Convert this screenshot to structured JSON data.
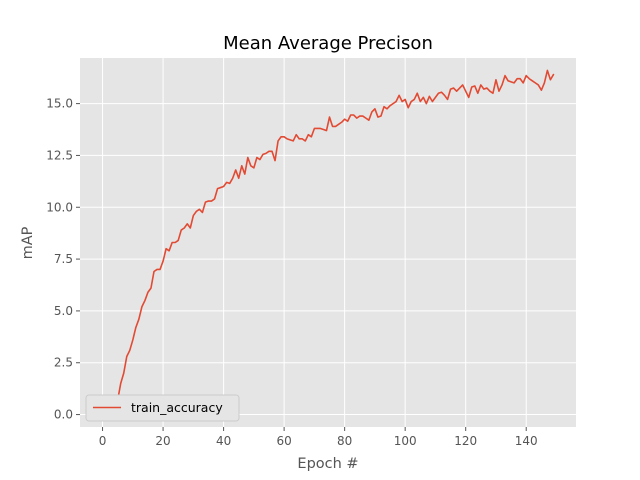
{
  "chart_data": {
    "type": "line",
    "title": "Mean Average Precison",
    "xlabel": "Epoch #",
    "ylabel": "mAP",
    "xlim": [
      -7.45,
      156.45
    ],
    "ylim": [
      -0.6,
      17.2
    ],
    "xticks": [
      0,
      20,
      40,
      60,
      80,
      100,
      120,
      140
    ],
    "yticks": [
      0.0,
      2.5,
      5.0,
      7.5,
      10.0,
      12.5,
      15.0
    ],
    "ytick_labels": [
      "0.0",
      "2.5",
      "5.0",
      "7.5",
      "10.0",
      "12.5",
      "15.0"
    ],
    "grid": true,
    "legend_position": "lower-left",
    "colors": {
      "background": "#e5e5e5",
      "grid": "#ffffff",
      "line": "#e24a33",
      "legend_bg": "#e5e5e5",
      "legend_edge": "#cccccc"
    },
    "series": [
      {
        "name": "train_accuracy",
        "x": [
          0,
          1,
          2,
          3,
          4,
          5,
          6,
          7,
          8,
          9,
          10,
          11,
          12,
          13,
          14,
          15,
          16,
          17,
          18,
          19,
          20,
          21,
          22,
          23,
          24,
          25,
          26,
          27,
          28,
          29,
          30,
          31,
          32,
          33,
          34,
          35,
          36,
          37,
          38,
          39,
          40,
          41,
          42,
          43,
          44,
          45,
          46,
          47,
          48,
          49,
          50,
          51,
          52,
          53,
          54,
          55,
          56,
          57,
          58,
          59,
          60,
          61,
          62,
          63,
          64,
          65,
          66,
          67,
          68,
          69,
          70,
          71,
          72,
          73,
          74,
          75,
          76,
          77,
          78,
          79,
          80,
          81,
          82,
          83,
          84,
          85,
          86,
          87,
          88,
          89,
          90,
          91,
          92,
          93,
          94,
          95,
          96,
          97,
          98,
          99,
          100,
          101,
          102,
          103,
          104,
          105,
          106,
          107,
          108,
          109,
          110,
          111,
          112,
          113,
          114,
          115,
          116,
          117,
          118,
          119,
          120,
          121,
          122,
          123,
          124,
          125,
          126,
          127,
          128,
          129,
          130,
          131,
          132,
          133,
          134,
          135,
          136,
          137,
          138,
          139,
          140,
          141,
          142,
          143,
          144,
          145,
          146,
          147,
          148,
          149
        ],
        "values": [
          0.15,
          0.1,
          0.12,
          0.2,
          0.25,
          0.7,
          1.5,
          2.0,
          2.8,
          3.1,
          3.6,
          4.2,
          4.6,
          5.2,
          5.5,
          5.9,
          6.1,
          6.9,
          7.0,
          7.0,
          7.4,
          8.0,
          7.9,
          8.3,
          8.3,
          8.4,
          8.9,
          9.0,
          9.2,
          9.0,
          9.6,
          9.8,
          9.9,
          9.75,
          10.25,
          10.3,
          10.3,
          10.4,
          10.9,
          10.95,
          11.0,
          11.2,
          11.15,
          11.4,
          11.8,
          11.4,
          12.0,
          11.6,
          12.4,
          12.0,
          11.9,
          12.4,
          12.3,
          12.55,
          12.6,
          12.7,
          12.7,
          12.25,
          13.2,
          13.4,
          13.4,
          13.3,
          13.25,
          13.2,
          13.5,
          13.3,
          13.3,
          13.2,
          13.5,
          13.4,
          13.8,
          13.8,
          13.8,
          13.75,
          13.7,
          14.35,
          13.9,
          13.9,
          14.0,
          14.1,
          14.25,
          14.15,
          14.45,
          14.45,
          14.3,
          14.4,
          14.4,
          14.3,
          14.2,
          14.6,
          14.75,
          14.35,
          14.4,
          14.85,
          14.75,
          14.9,
          15.0,
          15.1,
          15.4,
          15.1,
          15.2,
          14.8,
          15.1,
          15.2,
          15.5,
          15.1,
          15.3,
          15.0,
          15.35,
          15.1,
          15.3,
          15.5,
          15.55,
          15.4,
          15.2,
          15.7,
          15.75,
          15.6,
          15.75,
          15.9,
          15.6,
          15.3,
          15.8,
          15.85,
          15.5,
          15.9,
          15.7,
          15.75,
          15.6,
          15.5,
          16.15,
          15.6,
          15.9,
          16.35,
          16.1,
          16.05,
          16.0,
          16.2,
          16.2,
          16.0,
          16.35,
          16.2,
          16.1,
          16.0,
          15.9,
          15.65,
          16.0,
          16.6,
          16.15,
          16.4
        ]
      }
    ]
  }
}
